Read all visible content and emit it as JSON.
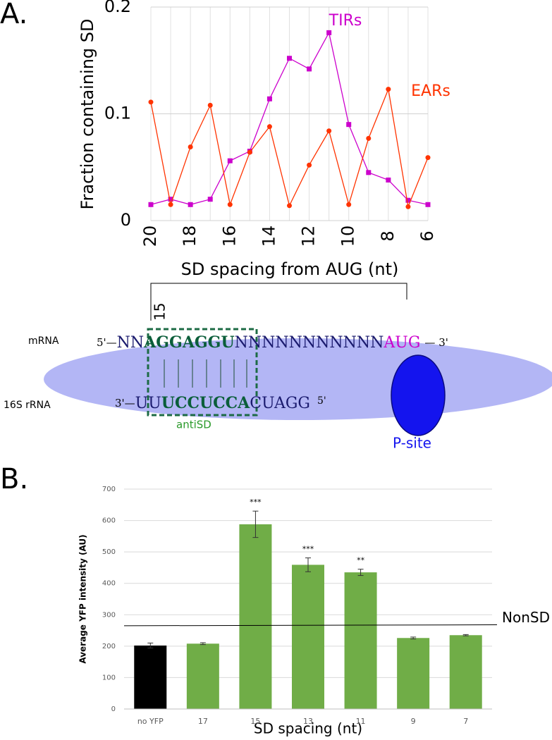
{
  "chart_data": [
    {
      "type": "line",
      "label": "A.",
      "y_label": "Fraction containing SD",
      "x_label": "SD spacing from AUG (nt)",
      "x": [
        20,
        19,
        18,
        17,
        16,
        15,
        14,
        13,
        12,
        11,
        10,
        9,
        8,
        7,
        6
      ],
      "xlim": [
        20,
        6
      ],
      "xticks": [
        20,
        18,
        16,
        14,
        12,
        10,
        8,
        6
      ],
      "ylim": [
        0,
        0.2
      ],
      "yticks": [
        0,
        0.1,
        0.2
      ],
      "grid": true,
      "series": [
        {
          "name": "TIRs",
          "color": "#cc00cc",
          "marker": "square",
          "values": [
            0.015,
            0.02,
            0.015,
            0.02,
            0.056,
            0.065,
            0.114,
            0.152,
            0.142,
            0.176,
            0.09,
            0.045,
            0.038,
            0.019,
            0.015
          ]
        },
        {
          "name": "EARs",
          "color": "#ff3300",
          "marker": "circle",
          "values": [
            0.111,
            0.015,
            0.069,
            0.108,
            0.015,
            0.064,
            0.088,
            0.014,
            0.052,
            0.084,
            0.015,
            0.077,
            0.123,
            0.013,
            0.059
          ]
        }
      ]
    },
    {
      "type": "bar",
      "label": "B.",
      "y_label": "Average YFP intensity (AU)",
      "x_label": "SD spacing (nt)",
      "categories": [
        "no YFP",
        "17",
        "15",
        "13",
        "11",
        "9",
        "7"
      ],
      "values": [
        202,
        208,
        588,
        459,
        435,
        226,
        235
      ],
      "errors": [
        8,
        3,
        42,
        22,
        10,
        3,
        2
      ],
      "significance": [
        null,
        null,
        "***",
        "***",
        "**",
        null,
        null
      ],
      "colors": [
        "#000000",
        "#70ad47",
        "#70ad47",
        "#70ad47",
        "#70ad47",
        "#70ad47",
        "#70ad47"
      ],
      "ylim": [
        0,
        700
      ],
      "yticks": [
        0,
        100,
        200,
        300,
        400,
        500,
        600,
        700
      ],
      "grid": true,
      "reference_line": {
        "label": "NonSD",
        "start": 265,
        "end": 268
      }
    }
  ],
  "diagram": {
    "spacing_label": "15",
    "mrna_label": "mRNA",
    "mrna": [
      "5'—",
      "NN",
      "AGGAGGU",
      "NNNNNNNNNNN",
      "AUG",
      "— 3'"
    ],
    "rrna_label": "16S rRNA",
    "rrna": [
      "3'—",
      "UU",
      "UCCUCCA",
      "CUAGG",
      "5'"
    ],
    "antisd_label": "antiSD",
    "psite_label": "P-site"
  }
}
